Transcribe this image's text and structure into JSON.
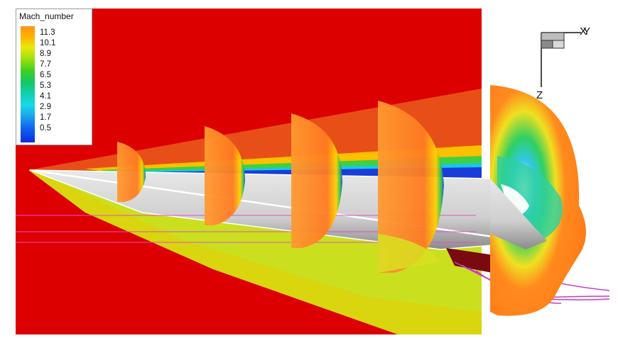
{
  "legend": {
    "title": "Mach_number",
    "levels": [
      "11.3",
      "10.1",
      "8.9",
      "7.7",
      "6.5",
      "5.3",
      "4.1",
      "2.9",
      "1.7",
      "0.5"
    ]
  },
  "axes": {
    "x_label": "X",
    "y_label": "Y",
    "z_label": "Z"
  },
  "colors": {
    "freestream": "#dd0000",
    "shock_layer": "#e8561a",
    "high_mach": "#ff8a1e",
    "low_mach": "#1a3cd8",
    "body": "#d2d2d2",
    "streamlines": "#d42ad4"
  }
}
